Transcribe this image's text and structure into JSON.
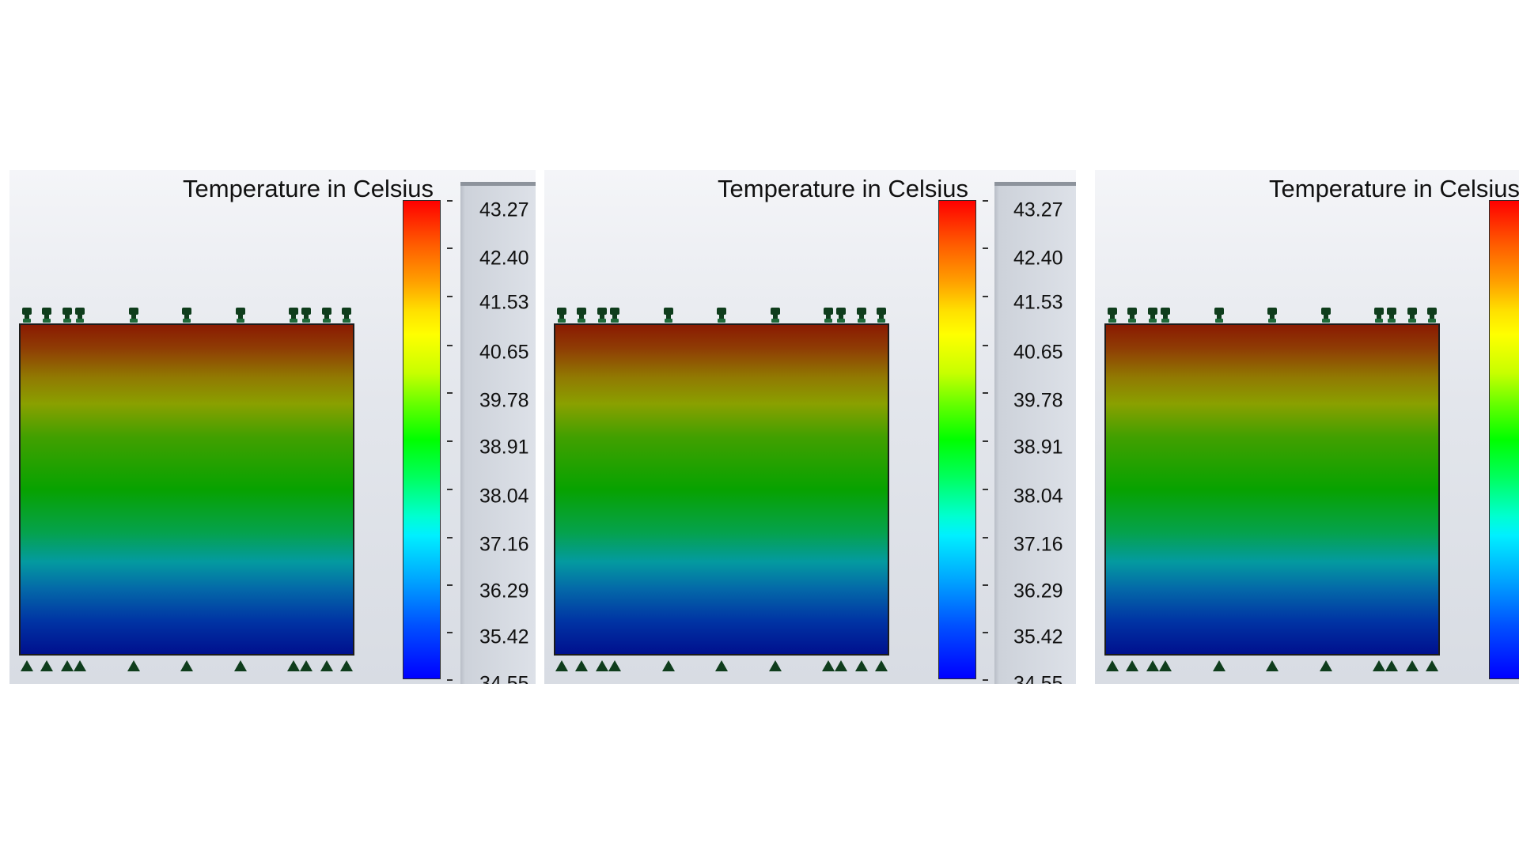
{
  "panels": [
    {
      "title": "Temperature in Celsius",
      "legend_ticks": [
        "43.27",
        "42.40",
        "41.53",
        "40.65",
        "39.78",
        "38.91",
        "38.04",
        "37.16",
        "36.29",
        "35.42",
        "34.55"
      ]
    },
    {
      "title": "Temperature in Celsius",
      "legend_ticks": [
        "43.27",
        "42.40",
        "41.53",
        "40.65",
        "39.78",
        "38.91",
        "38.04",
        "37.16",
        "36.29",
        "35.42",
        "34.55"
      ]
    },
    {
      "title": "Temperature in Celsius",
      "legend_ticks": []
    }
  ],
  "icons": {
    "top_markers": "thermal-restraint-icon",
    "bottom_markers": "fixed-support-icon"
  },
  "colors": {
    "scale_max": "#ff0000",
    "scale_mid": "#00ff00",
    "scale_min": "#0000ff",
    "marker": "#0f3d1c"
  }
}
